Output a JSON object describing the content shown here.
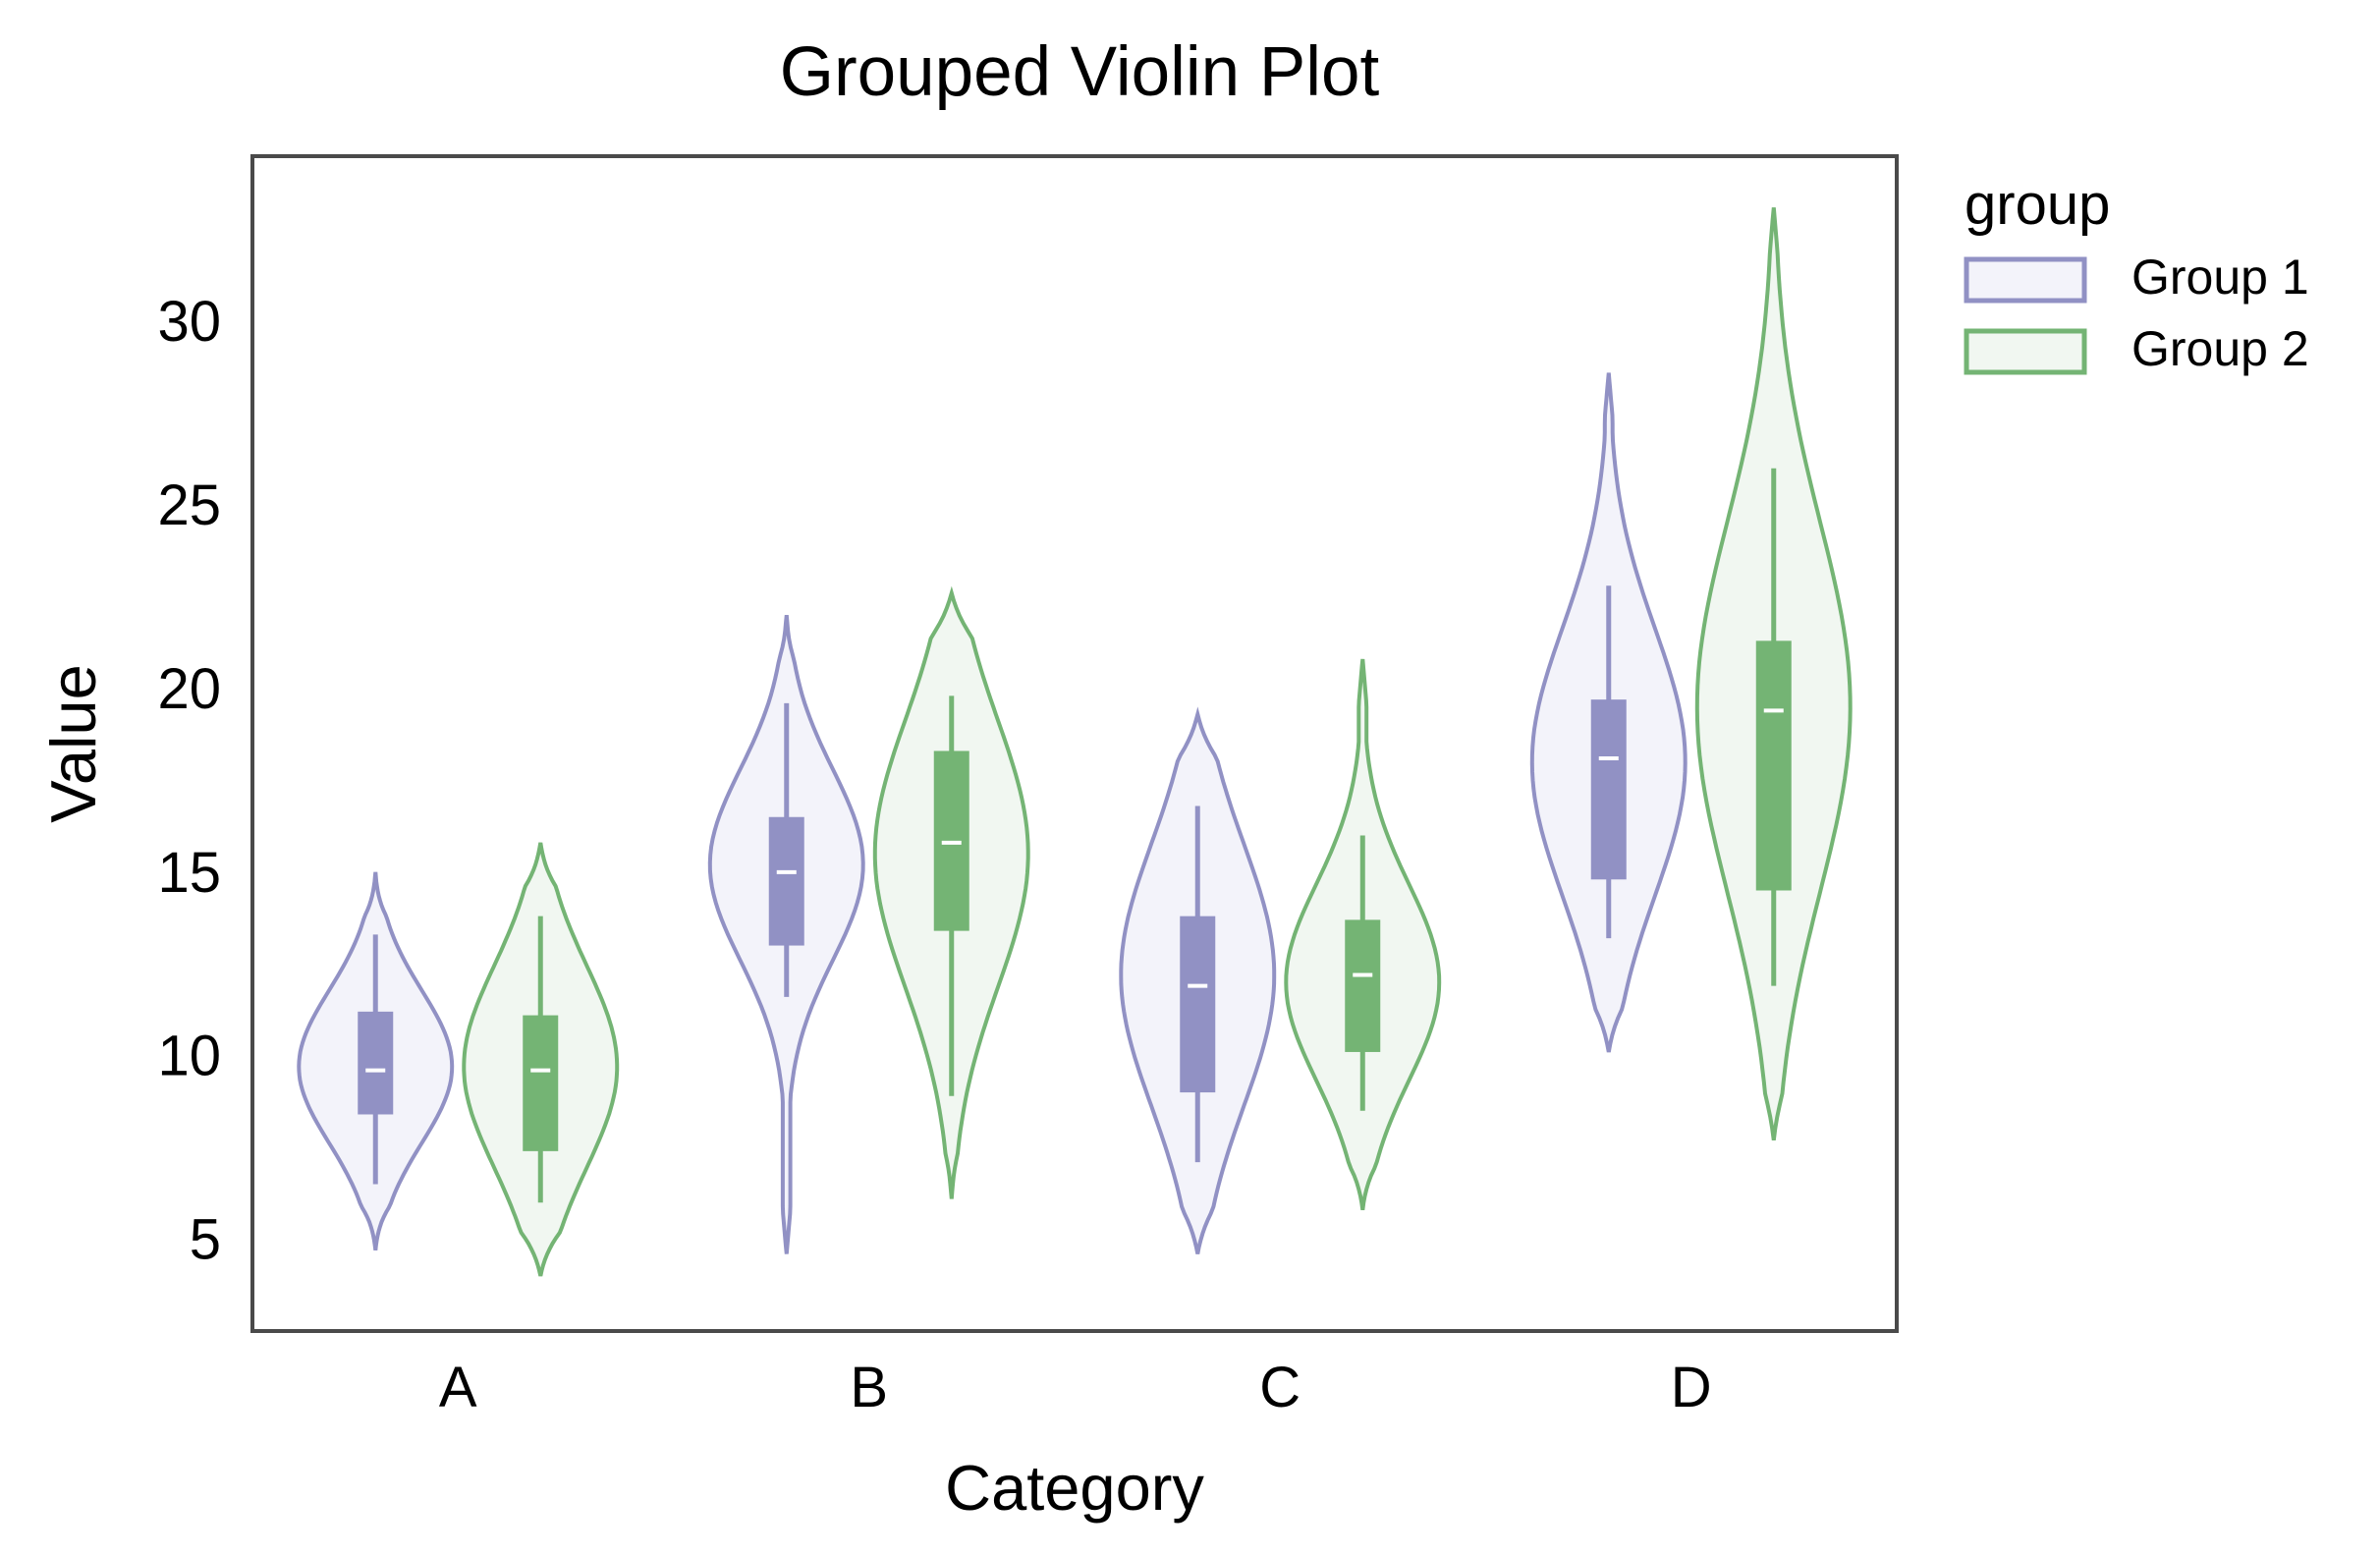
{
  "chart_data": {
    "type": "violin",
    "title": "Grouped Violin Plot",
    "xlabel": "Category",
    "ylabel": "Value",
    "categories": [
      "A",
      "B",
      "C",
      "D"
    ],
    "ylim": [
      2.5,
      34.5
    ],
    "yticks": [
      5,
      10,
      15,
      20,
      25,
      30
    ],
    "grid": false,
    "legend": {
      "title": "group",
      "placement": "outside-top-right"
    },
    "series": [
      {
        "name": "Group 1",
        "stroke": "#9191c4",
        "fill": "#f3f3fa",
        "box": "#9191c4",
        "stats": [
          {
            "min": 6.5,
            "q1": 8.4,
            "median": 9.6,
            "q3": 11.2,
            "max": 13.3,
            "kde_min": 4.7,
            "kde_max": 15.0,
            "mode": 9.7
          },
          {
            "min": 11.6,
            "q1": 13.0,
            "median": 15.0,
            "q3": 16.5,
            "max": 19.6,
            "kde_min": 4.6,
            "kde_max": 22.0,
            "mode": 15.2
          },
          {
            "min": 7.1,
            "q1": 9.0,
            "median": 11.9,
            "q3": 13.8,
            "max": 16.8,
            "kde_min": 4.6,
            "kde_max": 19.3,
            "mode": 12.2
          },
          {
            "min": 13.2,
            "q1": 14.8,
            "median": 18.1,
            "q3": 19.7,
            "max": 22.8,
            "kde_min": 10.1,
            "kde_max": 28.6,
            "mode": 18.0
          }
        ]
      },
      {
        "name": "Group 2",
        "stroke": "#74b474",
        "fill": "#f1f7f1",
        "box": "#74b474",
        "stats": [
          {
            "min": 6.0,
            "q1": 7.4,
            "median": 9.6,
            "q3": 11.1,
            "max": 13.8,
            "kde_min": 4.0,
            "kde_max": 15.8,
            "mode": 9.7
          },
          {
            "min": 8.9,
            "q1": 13.4,
            "median": 15.8,
            "q3": 18.3,
            "max": 19.8,
            "kde_min": 6.1,
            "kde_max": 22.6,
            "mode": 15.5
          },
          {
            "min": 8.5,
            "q1": 10.1,
            "median": 12.2,
            "q3": 13.7,
            "max": 16.0,
            "kde_min": 5.8,
            "kde_max": 20.8,
            "mode": 12.0
          },
          {
            "min": 11.9,
            "q1": 14.5,
            "median": 19.4,
            "q3": 21.3,
            "max": 26.0,
            "kde_min": 7.7,
            "kde_max": 33.1,
            "mode": 19.5
          }
        ]
      }
    ]
  }
}
